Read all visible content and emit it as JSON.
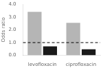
{
  "chart_data": {
    "type": "bar",
    "categories": [
      "levofloxacin",
      "ciprofloxacin"
    ],
    "series": [
      {
        "color": "#b5b5b5",
        "values": [
          3.4,
          2.55
        ]
      },
      {
        "color": "#1a1a1a",
        "values": [
          0.7,
          0.48
        ]
      }
    ],
    "ylabel": "Odds ratio",
    "ylim": [
      0.0,
      4.0
    ],
    "yticks": [
      {
        "value": 0.0,
        "label": "0.0"
      },
      {
        "value": 1.0,
        "label": "1.0"
      },
      {
        "value": 2.0,
        "label": "2.0"
      },
      {
        "value": 3.0,
        "label": "3.0"
      },
      {
        "value": 4.0,
        "label": "4.0"
      }
    ],
    "reference_line": {
      "y": 1.0,
      "line_style": "dashed"
    },
    "grid": false
  }
}
